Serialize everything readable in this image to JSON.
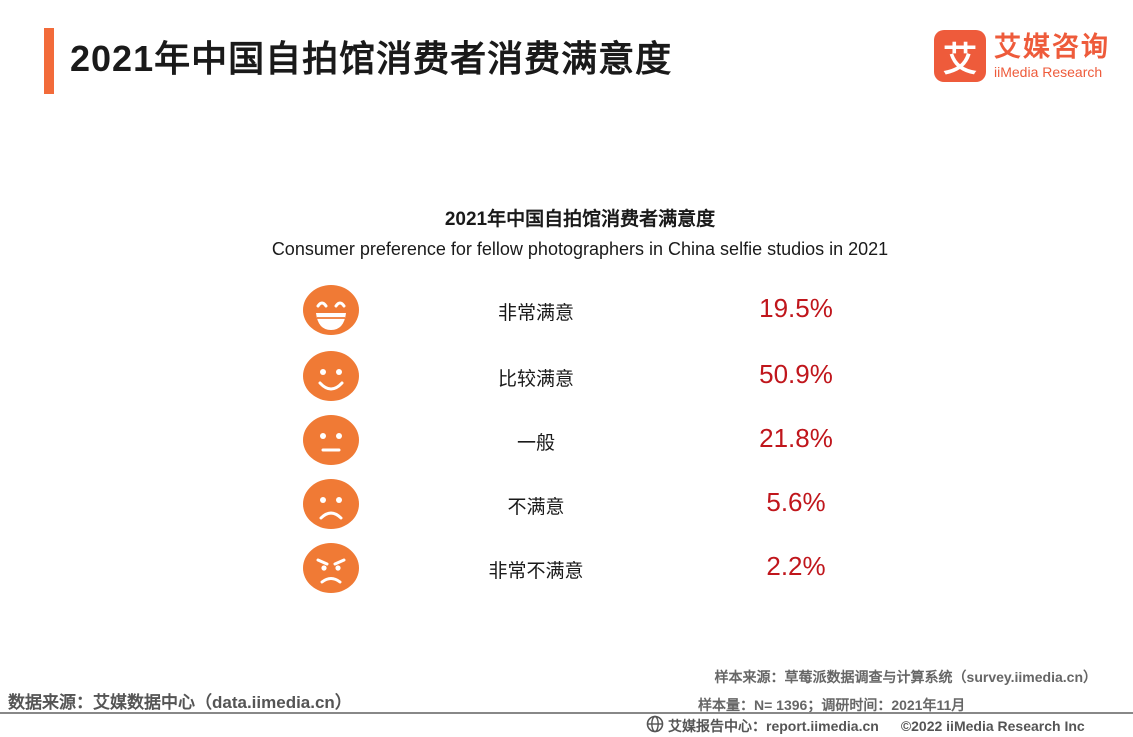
{
  "header": {
    "title": "2021年中国自拍馆消费者消费满意度",
    "logo_mark": "艾",
    "logo_cn": "艾媒咨询",
    "logo_en": "iiMedia Research",
    "accent_color": "#f26b3a"
  },
  "chart_data": {
    "type": "table",
    "title": "2021年中国自拍馆消费者满意度",
    "subtitle": "Consumer preference for fellow photographers in China selfie studios in 2021",
    "rows": [
      {
        "icon": "laughing-face-icon",
        "label": "非常满意",
        "value": 19.5,
        "display": "19.5%"
      },
      {
        "icon": "smiling-face-icon",
        "label": "比较满意",
        "value": 50.9,
        "display": "50.9%"
      },
      {
        "icon": "neutral-face-icon",
        "label": "一般",
        "value": 21.8,
        "display": "21.8%"
      },
      {
        "icon": "sad-face-icon",
        "label": "不满意",
        "value": 5.6,
        "display": "5.6%"
      },
      {
        "icon": "angry-face-icon",
        "label": "非常不满意",
        "value": 2.2,
        "display": "2.2%"
      }
    ],
    "face_color": "#f07a35",
    "value_color": "#c0161c"
  },
  "footer": {
    "data_source": "数据来源：艾媒数据中心（data.iimedia.cn）",
    "sample_source": "样本来源：草莓派数据调查与计算系统（survey.iimedia.cn）",
    "sample_size": "样本量：N= 1396；调研时间：2021年11月",
    "report_center": "艾媒报告中心：report.iimedia.cn",
    "copyright": "©2022  iiMedia Research  Inc"
  }
}
